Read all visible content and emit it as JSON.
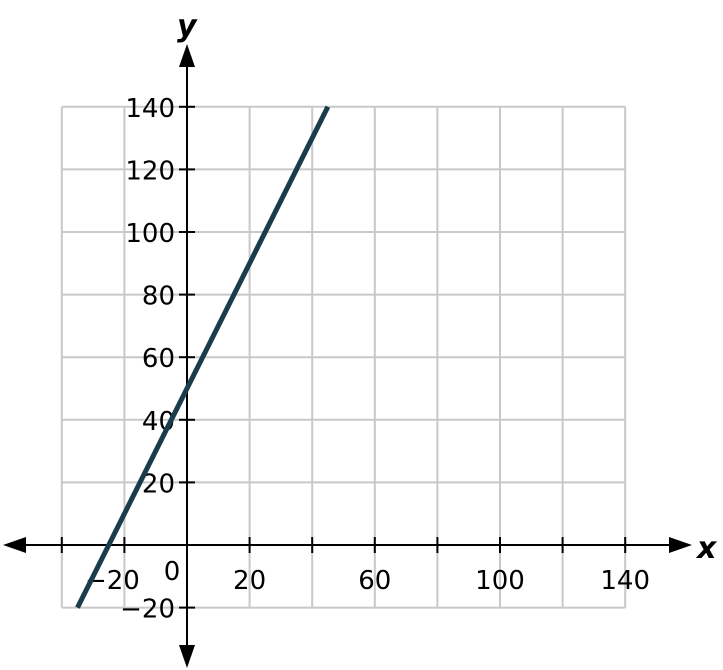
{
  "chart_data": {
    "type": "line",
    "title": "",
    "xlabel": "x",
    "ylabel": "y",
    "xlim": [
      -40,
      140
    ],
    "ylim": [
      -20,
      140
    ],
    "grid": true,
    "grid_step": 20,
    "x_tick_labels": [
      "−20",
      "20",
      "60",
      "100",
      "140"
    ],
    "x_tick_values": [
      -20,
      20,
      60,
      100,
      140
    ],
    "y_tick_labels": [
      "−20",
      "20",
      "40",
      "60",
      "80",
      "100",
      "120",
      "140"
    ],
    "y_tick_values": [
      -20,
      20,
      40,
      60,
      80,
      100,
      120,
      140
    ],
    "origin_label": "0",
    "series": [
      {
        "points": [
          [
            -35,
            -20
          ],
          [
            45,
            140
          ]
        ],
        "color": "#1b3d4b"
      }
    ],
    "colors": {
      "grid": "#c8c8c8",
      "axis": "#000000",
      "line": "#1b3d4b"
    }
  }
}
